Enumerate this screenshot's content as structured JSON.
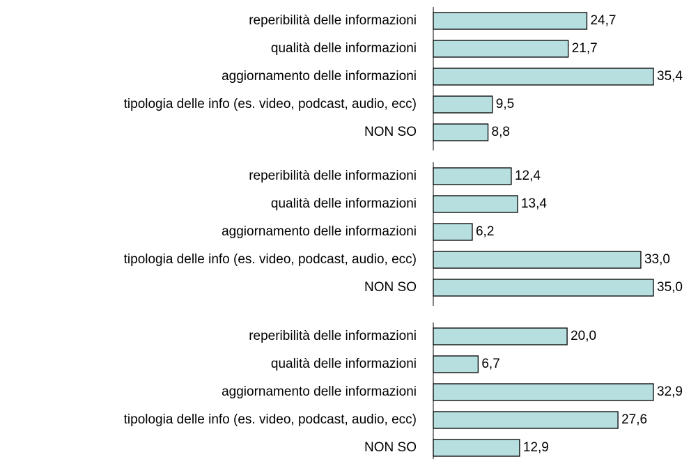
{
  "chart_data": [
    {
      "type": "bar",
      "orientation": "horizontal",
      "color": "#b7dfe0",
      "categories": [
        "reperibilità delle informazioni",
        "qualità delle informazioni",
        "aggiornamento delle informazioni",
        "tipologia delle info (es. video, podcast, audio, ecc)",
        "NON SO"
      ],
      "values": [
        24.7,
        21.7,
        35.4,
        9.5,
        8.8
      ],
      "value_labels": [
        "24,7",
        "21,7",
        "35,4",
        "9,5",
        "8,8"
      ]
    },
    {
      "type": "bar",
      "orientation": "horizontal",
      "color": "#b7dfe0",
      "categories": [
        "reperibilità delle informazioni",
        "qualità delle informazioni",
        "aggiornamento delle informazioni",
        "tipologia delle info (es. video, podcast, audio, ecc)",
        "NON SO"
      ],
      "values": [
        12.4,
        13.4,
        6.2,
        33.0,
        35.0
      ],
      "value_labels": [
        "12,4",
        "13,4",
        "6,2",
        "33,0",
        "35,0"
      ]
    },
    {
      "type": "bar",
      "orientation": "horizontal",
      "color": "#b7dfe0",
      "categories": [
        "reperibilità delle informazioni",
        "qualità delle informazioni",
        "aggiornamento delle informazioni",
        "tipologia delle info (es. video, podcast, audio, ecc)",
        "NON SO"
      ],
      "values": [
        20.0,
        6.7,
        32.9,
        27.6,
        12.9
      ],
      "value_labels": [
        "20,0",
        "6,7",
        "32,9",
        "27,6",
        "12,9"
      ]
    }
  ]
}
